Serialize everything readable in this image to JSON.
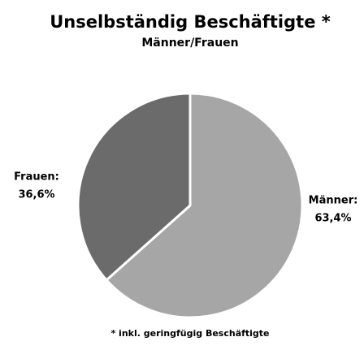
{
  "chart_data": {
    "type": "pie",
    "title": "Unselbständig Beschäftigte *",
    "subtitle": "Männer/Frauen",
    "categories": [
      "Männer:",
      "Frauen:"
    ],
    "values": [
      63.4,
      36.6
    ],
    "value_labels": [
      "63,4%",
      "36,6%"
    ],
    "colors": [
      "#a6a6a6",
      "#6b6b6b"
    ],
    "annotation": "* inkl. geringfügig Beschäftigte"
  }
}
